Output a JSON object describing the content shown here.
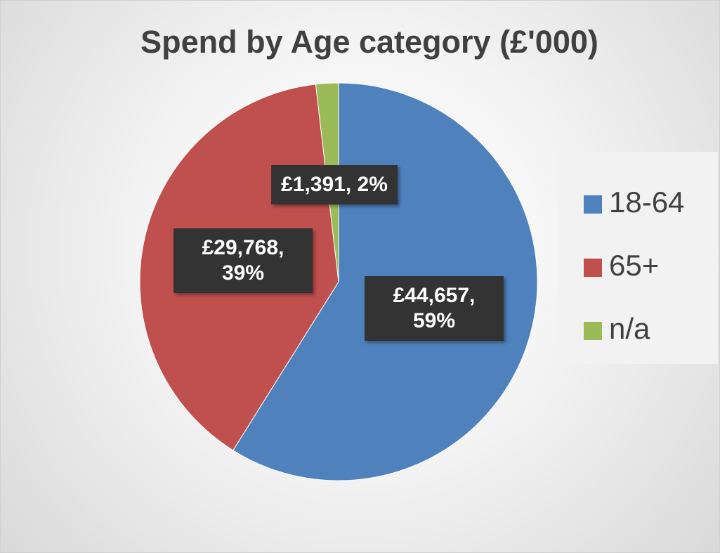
{
  "chart_data": {
    "type": "pie",
    "title": "Spend by Age category (£'000)",
    "categories": [
      "18-64",
      "65+",
      "n/a"
    ],
    "values": [
      44657,
      29768,
      1391
    ],
    "value_labels": [
      "£44,657, 59%",
      "£29,768, 39%",
      "£1,391, 2%"
    ],
    "colors": [
      "#4f81bd",
      "#c0504d",
      "#9bbb59"
    ],
    "legend": "right"
  }
}
